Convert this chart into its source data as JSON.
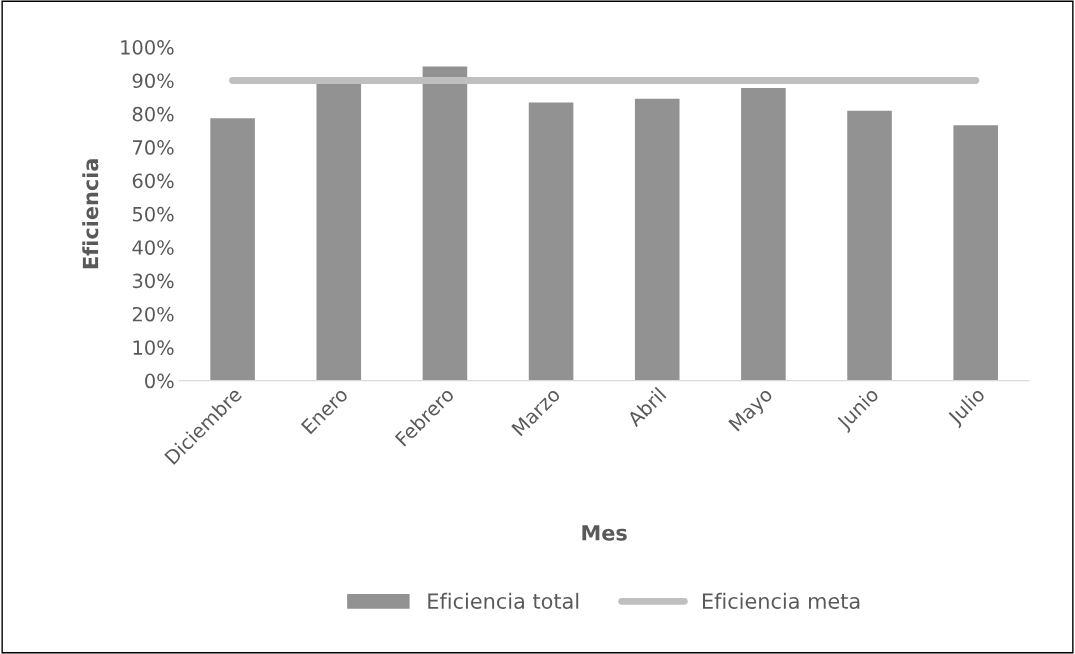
{
  "chart_data": {
    "type": "bar",
    "xlabel": "Mes",
    "ylabel": "Eficiencia",
    "categories": [
      "Diciembre",
      "Enero",
      "Febrero",
      "Marzo",
      "Abril",
      "Mayo",
      "Junio",
      "Julio"
    ],
    "series": [
      {
        "name": "Eficiencia total",
        "color": "#929292",
        "values": [
          78.7,
          89.3,
          94.2,
          83.4,
          84.5,
          87.7,
          80.9,
          76.6
        ]
      },
      {
        "name": "Eficiencia meta",
        "type": "line",
        "color": "#bfbfbf",
        "values": [
          90,
          90,
          90,
          90,
          90,
          90,
          90,
          90
        ]
      }
    ],
    "ylim": [
      0,
      100
    ],
    "yticks": [
      {
        "value": 0,
        "label": "0%"
      },
      {
        "value": 10,
        "label": "10%"
      },
      {
        "value": 20,
        "label": "20%"
      },
      {
        "value": 30,
        "label": "30%"
      },
      {
        "value": 40,
        "label": "40%"
      },
      {
        "value": 50,
        "label": "50%"
      },
      {
        "value": 60,
        "label": "60%"
      },
      {
        "value": 70,
        "label": "70%"
      },
      {
        "value": 80,
        "label": "80%"
      },
      {
        "value": 90,
        "label": "90%"
      },
      {
        "value": 100,
        "label": "100%"
      }
    ],
    "grid": false,
    "legend": "bottom"
  }
}
